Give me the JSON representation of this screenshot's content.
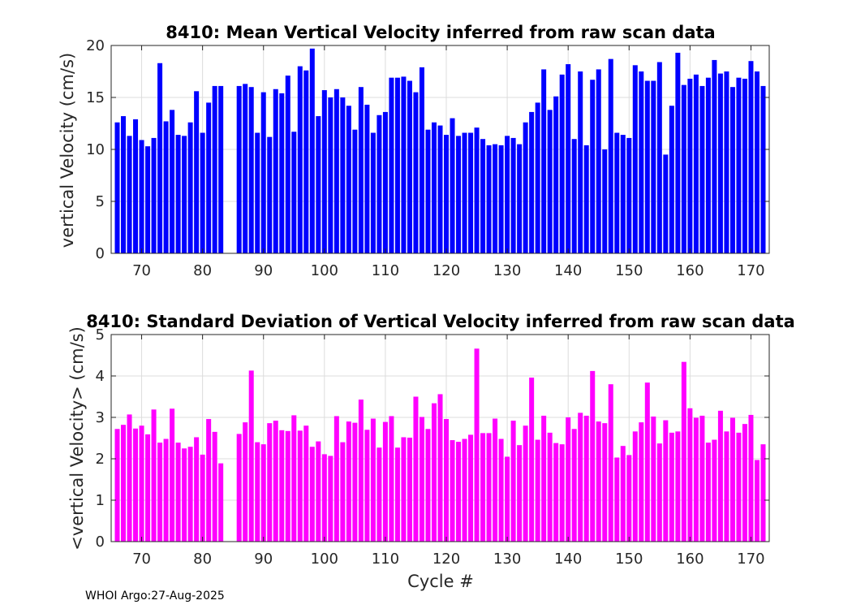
{
  "footer": "WHOI Argo:27-Aug-2025",
  "chart_data": [
    {
      "type": "bar",
      "title": "8410: Mean Vertical Velocity inferred from raw scan data",
      "xlabel": "",
      "ylabel": "vertical Velocity (cm/s)",
      "xlim": [
        65,
        173
      ],
      "ylim": [
        0,
        20
      ],
      "xticks": [
        70,
        80,
        90,
        100,
        110,
        120,
        130,
        140,
        150,
        160,
        170
      ],
      "yticks": [
        0,
        5,
        10,
        15,
        20
      ],
      "grid": true,
      "color": "#0000ff",
      "x": [
        66,
        67,
        68,
        69,
        70,
        71,
        72,
        73,
        74,
        75,
        76,
        77,
        78,
        79,
        80,
        81,
        82,
        83,
        86,
        87,
        88,
        89,
        90,
        91,
        92,
        93,
        94,
        95,
        96,
        97,
        98,
        99,
        100,
        101,
        102,
        103,
        104,
        105,
        106,
        107,
        108,
        109,
        110,
        111,
        112,
        113,
        114,
        115,
        116,
        117,
        118,
        119,
        120,
        121,
        122,
        123,
        124,
        125,
        126,
        127,
        128,
        129,
        130,
        131,
        132,
        133,
        134,
        135,
        136,
        137,
        138,
        139,
        140,
        141,
        142,
        143,
        144,
        145,
        146,
        147,
        148,
        149,
        150,
        151,
        152,
        153,
        154,
        155,
        156,
        157,
        158,
        159,
        160,
        161,
        162,
        163,
        164,
        165,
        166,
        167,
        168,
        169,
        170,
        171,
        172
      ],
      "values": [
        12.6,
        13.2,
        11.3,
        12.9,
        10.9,
        10.3,
        11.1,
        18.3,
        12.7,
        13.8,
        11.4,
        11.3,
        12.6,
        15.6,
        11.6,
        14.5,
        16.1,
        16.1,
        16.1,
        16.3,
        16.0,
        11.6,
        15.5,
        11.2,
        15.8,
        15.4,
        17.1,
        11.7,
        18.0,
        17.6,
        19.7,
        13.2,
        15.7,
        15.0,
        15.8,
        15.0,
        14.2,
        11.9,
        16.0,
        14.3,
        11.6,
        13.3,
        13.6,
        16.9,
        16.9,
        17.0,
        16.6,
        15.5,
        17.9,
        11.9,
        12.6,
        12.3,
        11.4,
        13.0,
        11.3,
        11.6,
        11.6,
        12.1,
        11.0,
        10.4,
        10.5,
        10.4,
        11.3,
        11.1,
        10.5,
        12.6,
        13.6,
        14.5,
        17.7,
        13.8,
        15.1,
        17.2,
        18.2,
        11.0,
        17.5,
        10.4,
        16.7,
        17.7,
        10.0,
        18.7,
        11.6,
        11.4,
        11.1,
        18.1,
        17.5,
        16.6,
        16.6,
        18.4,
        9.5,
        14.2,
        19.3,
        16.2,
        16.8,
        17.2,
        16.1,
        16.9,
        18.6,
        17.3,
        17.5,
        16.0,
        16.9,
        16.8,
        18.5,
        17.5,
        16.1
      ]
    },
    {
      "type": "bar",
      "title": "8410: Standard Deviation of Vertical Velocity inferred from raw scan data",
      "xlabel": "Cycle #",
      "ylabel": "<vertical Velocity> (cm/s)",
      "xlim": [
        65,
        173
      ],
      "ylim": [
        0,
        5
      ],
      "xticks": [
        70,
        80,
        90,
        100,
        110,
        120,
        130,
        140,
        150,
        160,
        170
      ],
      "yticks": [
        0,
        1,
        2,
        3,
        4,
        5
      ],
      "grid": true,
      "color": "#ff00ff",
      "x": [
        66,
        67,
        68,
        69,
        70,
        71,
        72,
        73,
        74,
        75,
        76,
        77,
        78,
        79,
        80,
        81,
        82,
        83,
        86,
        87,
        88,
        89,
        90,
        91,
        92,
        93,
        94,
        95,
        96,
        97,
        98,
        99,
        100,
        101,
        102,
        103,
        104,
        105,
        106,
        107,
        108,
        109,
        110,
        111,
        112,
        113,
        114,
        115,
        116,
        117,
        118,
        119,
        120,
        121,
        122,
        123,
        124,
        125,
        126,
        127,
        128,
        129,
        130,
        131,
        132,
        133,
        134,
        135,
        136,
        137,
        138,
        139,
        140,
        141,
        142,
        143,
        144,
        145,
        146,
        147,
        148,
        149,
        150,
        151,
        152,
        153,
        154,
        155,
        156,
        157,
        158,
        159,
        160,
        161,
        162,
        163,
        164,
        165,
        166,
        167,
        168,
        169,
        170,
        171,
        172
      ],
      "values": [
        2.72,
        2.82,
        3.07,
        2.73,
        2.8,
        2.59,
        3.19,
        2.39,
        2.48,
        3.21,
        2.39,
        2.25,
        2.29,
        2.52,
        2.1,
        2.96,
        2.65,
        1.89,
        2.6,
        2.88,
        4.13,
        2.4,
        2.35,
        2.86,
        2.92,
        2.69,
        2.67,
        3.05,
        2.68,
        2.8,
        2.29,
        2.42,
        2.11,
        2.07,
        3.03,
        2.4,
        2.9,
        2.87,
        3.43,
        2.7,
        2.97,
        2.27,
        2.89,
        3.03,
        2.27,
        2.52,
        2.51,
        3.5,
        3.01,
        2.72,
        3.34,
        3.56,
        2.96,
        2.45,
        2.41,
        2.48,
        2.58,
        4.66,
        2.62,
        2.62,
        2.97,
        2.48,
        2.05,
        2.92,
        2.33,
        2.8,
        3.96,
        2.46,
        3.04,
        2.63,
        2.38,
        2.35,
        3.0,
        2.72,
        3.11,
        3.04,
        4.12,
        2.9,
        2.86,
        3.8,
        2.03,
        2.31,
        2.09,
        2.66,
        2.88,
        3.84,
        3.02,
        2.37,
        2.93,
        2.63,
        2.66,
        4.34,
        3.22,
        2.99,
        3.04,
        2.39,
        2.46,
        3.16,
        2.66,
        2.99,
        2.63,
        2.84,
        3.06,
        1.97,
        2.35
      ]
    }
  ]
}
